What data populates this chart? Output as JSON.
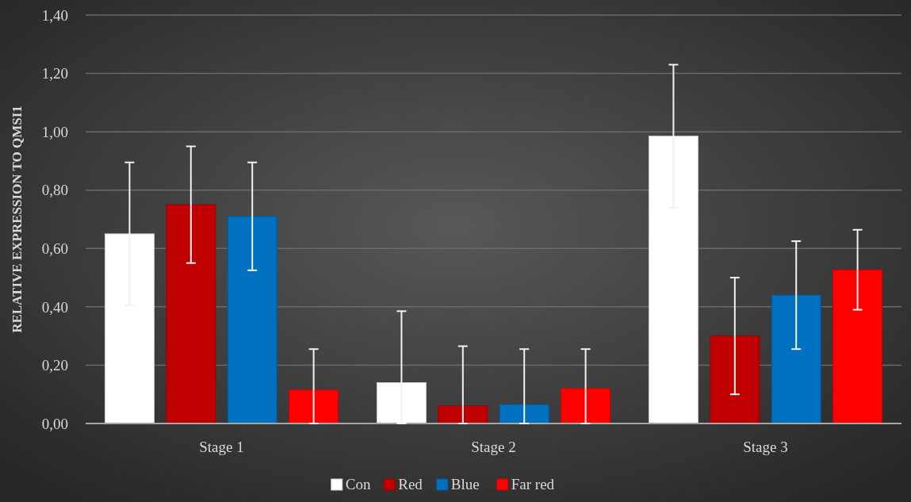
{
  "chart_data": {
    "type": "bar",
    "ylabel": "RELATIVE EXPRESSION TO QMSI1",
    "categories": [
      "Stage 1",
      "Stage 2",
      "Stage 3"
    ],
    "series": [
      {
        "name": "Con",
        "color": "#ffffff",
        "values": [
          0.65,
          0.14,
          0.985
        ],
        "errors": [
          0.245,
          [
            0,
            0.385
          ],
          0.245
        ]
      },
      {
        "name": "Red",
        "color": "#c00000",
        "values": [
          0.75,
          0.06,
          0.3
        ],
        "errors": [
          0.2,
          [
            0,
            0.265
          ],
          0.2
        ]
      },
      {
        "name": "Blue",
        "color": "#0070c0",
        "values": [
          0.71,
          0.065,
          0.44
        ],
        "errors": [
          0.185,
          [
            0,
            0.255
          ],
          0.185
        ]
      },
      {
        "name": "Far red",
        "color": "#ff0000",
        "values": [
          0.115,
          0.12,
          0.527
        ],
        "errors": [
          [
            0,
            0.255
          ],
          [
            0,
            0.255
          ],
          0.137
        ]
      }
    ],
    "ylim": [
      0,
      1.4
    ],
    "yticks": [
      {
        "value": 0,
        "label": "0,00"
      },
      {
        "value": 0.2,
        "label": "0,20"
      },
      {
        "value": 0.4,
        "label": "0,40"
      },
      {
        "value": 0.6,
        "label": "0,60"
      },
      {
        "value": 0.8,
        "label": "0,80"
      },
      {
        "value": 1,
        "label": "1,00"
      },
      {
        "value": 1.2,
        "label": "1,20"
      },
      {
        "value": 1.4,
        "label": "1,40"
      }
    ],
    "grid": "y",
    "legend": "bottom"
  }
}
